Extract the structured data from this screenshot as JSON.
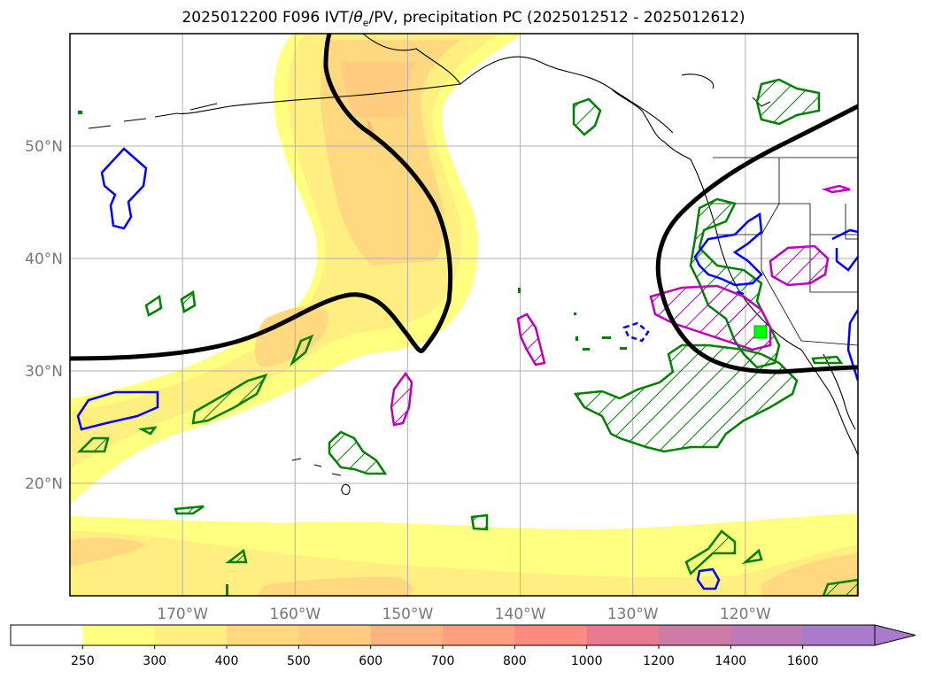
{
  "title": {
    "prefix": "2025012200 F096 IVT/",
    "theta_symbol": "θ",
    "theta_sub": "e",
    "suffix": "/PV, precipitation PC (2025012512 - 2025012612)"
  },
  "map": {
    "lon_range": [
      -180,
      -110
    ],
    "lat_range": [
      10,
      60
    ],
    "lat_gridlines": [
      20,
      30,
      40,
      50
    ],
    "lon_gridlines": [
      -170,
      -160,
      -150,
      -140,
      -130,
      -120
    ],
    "lat_labels": [
      "20°N",
      "30°N",
      "40°N",
      "50°N"
    ],
    "lon_labels": [
      "170°W",
      "160°W",
      "150°W",
      "140°W",
      "130°W",
      "120°W"
    ],
    "grid": true,
    "ivt_units_note": "",
    "contour_colors": {
      "theta_e": "#000000",
      "precip_green": "#008000",
      "blue": "#0000ff",
      "magenta": "#bb00bb",
      "marker": "#00ff00"
    }
  },
  "colorbar": {
    "levels": [
      "250",
      "300",
      "400",
      "500",
      "600",
      "700",
      "800",
      "1000",
      "1200",
      "1400",
      "1600"
    ],
    "colors": [
      "#ffffff",
      "#ffff80",
      "#ffee80",
      "#ffd880",
      "#ffcc80",
      "#ffb380",
      "#ff9f80",
      "#ff8a80",
      "#e87a90",
      "#cc7aa6",
      "#bb7ab8",
      "#aa7acc"
    ],
    "extend": "max"
  }
}
